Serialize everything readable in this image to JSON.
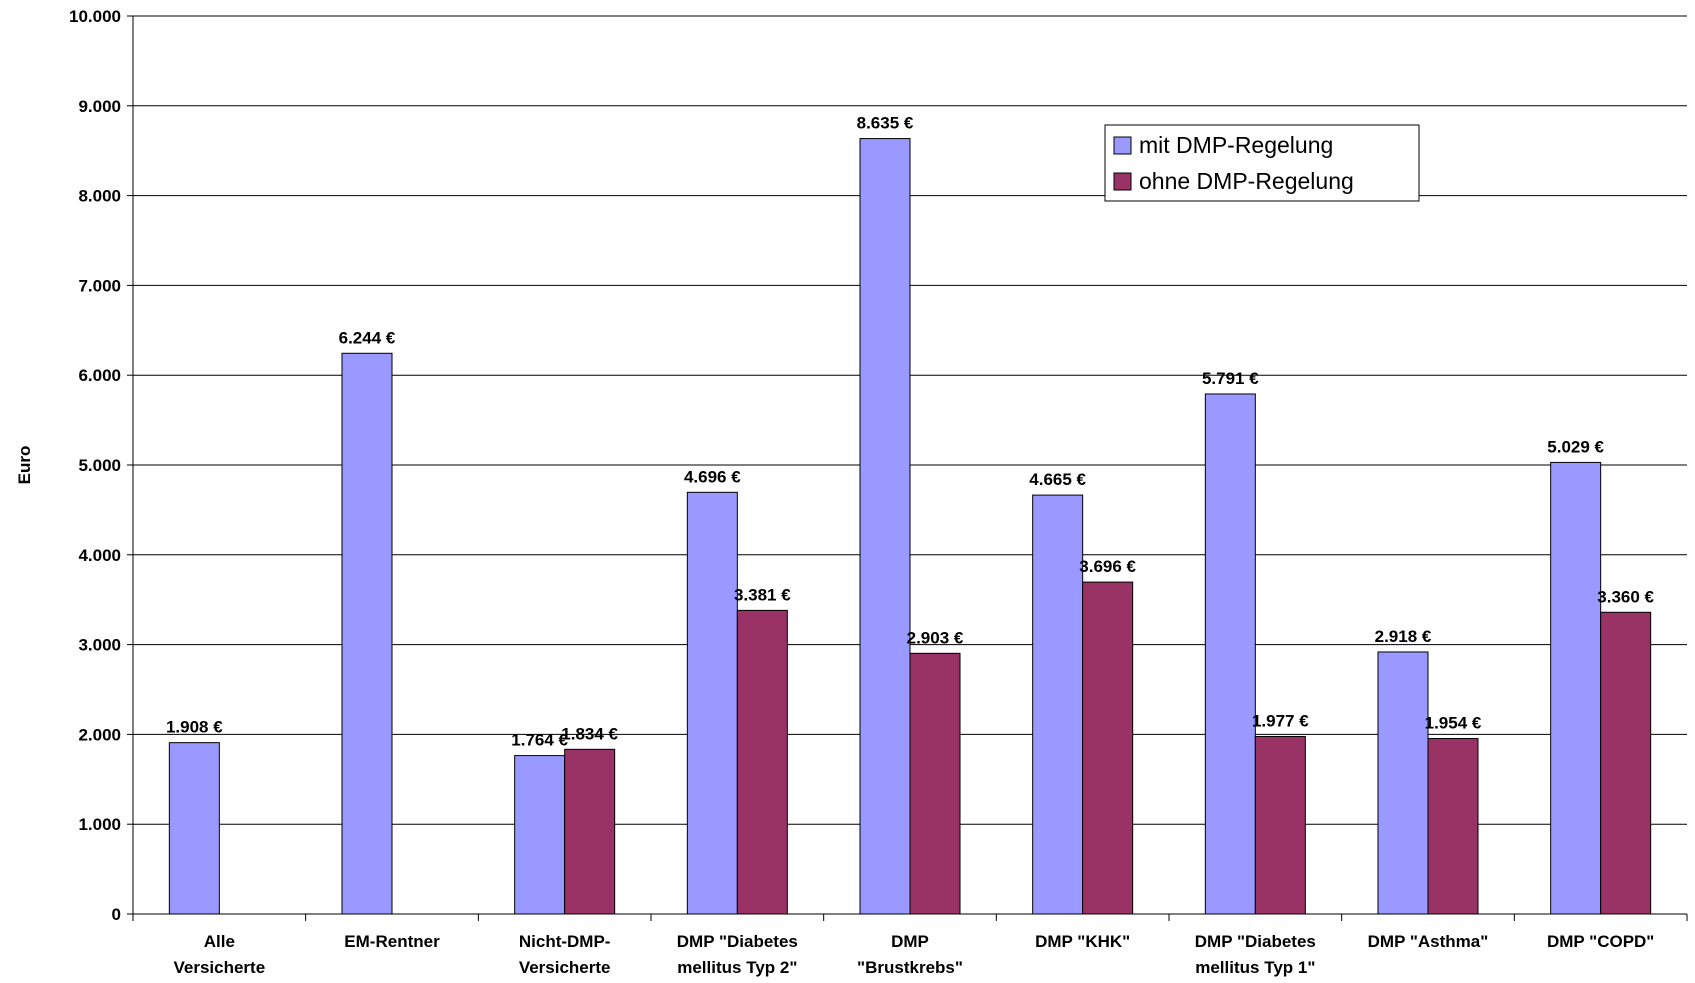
{
  "chart_data": {
    "type": "bar",
    "ylabel": "Euro",
    "ylim": [
      0,
      10000
    ],
    "y_ticks": [
      0,
      1000,
      2000,
      3000,
      4000,
      5000,
      6000,
      7000,
      8000,
      9000,
      10000
    ],
    "y_tick_labels": [
      "0",
      "1.000",
      "2.000",
      "3.000",
      "4.000",
      "5.000",
      "6.000",
      "7.000",
      "8.000",
      "9.000",
      "10.000"
    ],
    "grid": true,
    "legend_position": "top-right",
    "categories": [
      [
        "Alle",
        "Versicherte"
      ],
      [
        "EM-Rentner"
      ],
      [
        "Nicht-DMP-",
        "Versicherte"
      ],
      [
        "DMP \"Diabetes",
        "mellitus Typ 2\""
      ],
      [
        "DMP",
        "\"Brustkrebs\""
      ],
      [
        "DMP \"KHK\""
      ],
      [
        "DMP \"Diabetes",
        "mellitus Typ 1\""
      ],
      [
        "DMP \"Asthma\""
      ],
      [
        "DMP \"COPD\""
      ]
    ],
    "series": [
      {
        "name": "mit DMP-Regelung",
        "color": "#9999FF",
        "values": [
          1908,
          6244,
          1764,
          4696,
          8635,
          4665,
          5791,
          2918,
          5029
        ],
        "labels": [
          "1.908 €",
          "6.244 €",
          "1.764 €",
          "4.696 €",
          "8.635 €",
          "4.665 €",
          "5.791 €",
          "2.918 €",
          "5.029 €"
        ]
      },
      {
        "name": "ohne DMP-Regelung",
        "color": "#993366",
        "values": [
          null,
          null,
          1834,
          3381,
          2903,
          3696,
          1977,
          1954,
          3360
        ],
        "labels": [
          null,
          null,
          "1.834 €",
          "3.381 €",
          "2.903 €",
          "3.696 €",
          "1.977 €",
          "1.954 €",
          "3.360 €"
        ]
      }
    ]
  }
}
